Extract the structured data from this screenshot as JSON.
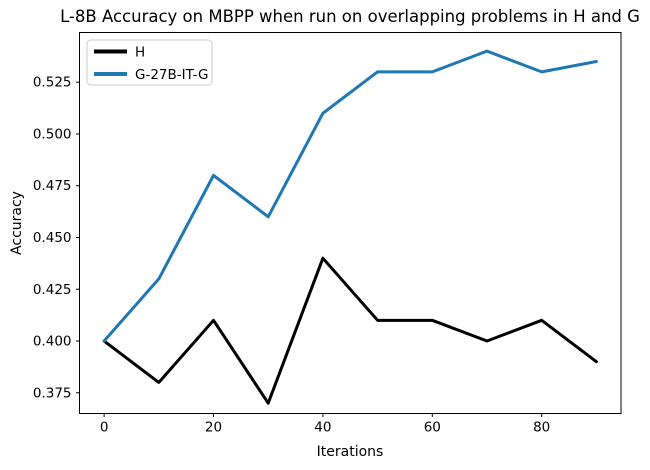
{
  "figure": {
    "background": "#ffffff",
    "frame_color": "#000000"
  },
  "chart_data": {
    "type": "line",
    "title": "L-8B Accuracy on MBPP when run on overlapping problems in H and G",
    "xlabel": "Iterations",
    "ylabel": "Accuracy",
    "x": [
      0,
      10,
      20,
      30,
      40,
      50,
      60,
      70,
      80,
      90
    ],
    "series": [
      {
        "name": "H",
        "color": "#000000",
        "values": [
          0.4,
          0.38,
          0.41,
          0.37,
          0.44,
          0.41,
          0.41,
          0.4,
          0.41,
          0.39
        ]
      },
      {
        "name": "G-27B-IT-G",
        "color": "#1f77b4",
        "values": [
          0.4,
          0.43,
          0.48,
          0.46,
          0.51,
          0.53,
          0.53,
          0.54,
          0.53,
          0.535
        ]
      }
    ],
    "xticks": [
      0,
      20,
      40,
      60,
      80
    ],
    "xtick_labels": [
      "0",
      "20",
      "40",
      "60",
      "80"
    ],
    "ytick_values": [
      0.375,
      0.4,
      0.425,
      0.45,
      0.475,
      0.5,
      0.525
    ],
    "ytick_labels": [
      "0.375",
      "0.400",
      "0.425",
      "0.450",
      "0.475",
      "0.500",
      "0.525"
    ],
    "xlim": [
      -4.5,
      94.5
    ],
    "ylim": [
      0.365,
      0.549
    ],
    "grid": false,
    "legend_position": "upper-left",
    "line_width": 3
  }
}
